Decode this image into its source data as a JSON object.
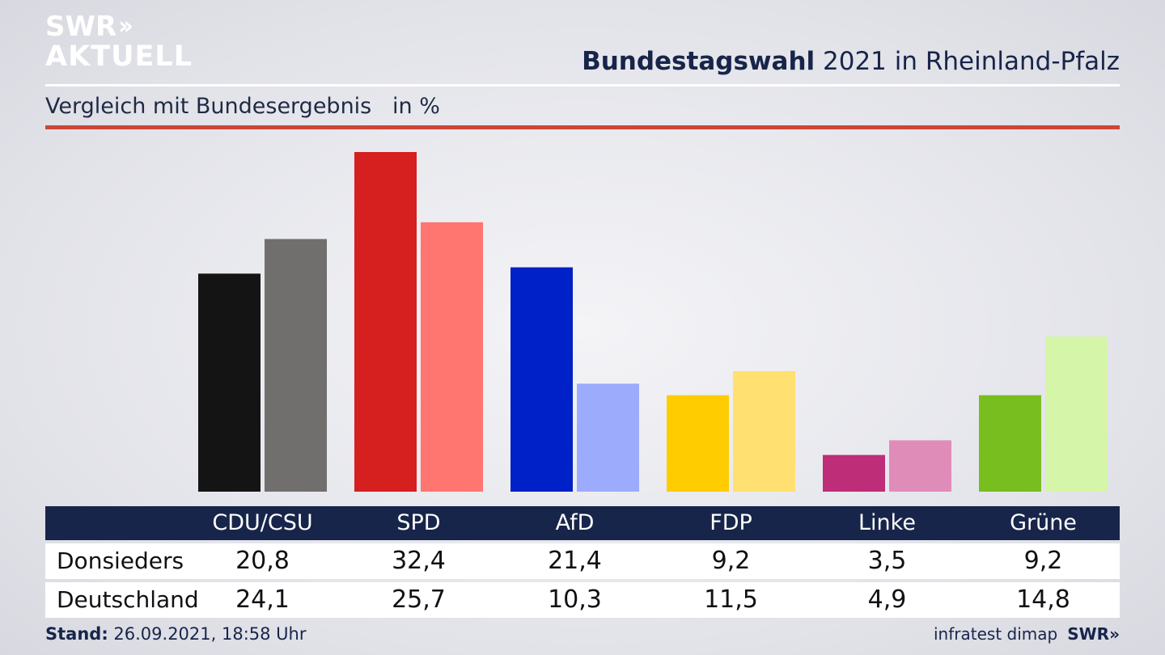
{
  "brand": {
    "logo_line1": "SWR",
    "logo_chevrons": "››",
    "logo_line2": "AKTUELL",
    "footer_logo": "SWR»"
  },
  "header": {
    "title_bold": "Bundestagswahl",
    "title_rest": " 2021 in Rheinland-Pfalz",
    "subtitle": "Vergleich mit Bundesergebnis   in %"
  },
  "colors": {
    "navy": "#18254a",
    "red_rule": "#cc4638"
  },
  "chart_data": {
    "type": "bar",
    "categories": [
      "CDU/CSU",
      "SPD",
      "AfD",
      "FDP",
      "Linke",
      "Grüne"
    ],
    "series": [
      {
        "name": "Donsieders",
        "values": [
          20.8,
          32.4,
          21.4,
          9.2,
          3.5,
          9.2
        ],
        "colors": [
          "#141414",
          "#d61f1f",
          "#0020c8",
          "#ffcc00",
          "#be2d78",
          "#78be1e"
        ]
      },
      {
        "name": "Deutschland",
        "values": [
          24.1,
          25.7,
          10.3,
          11.5,
          4.9,
          14.8
        ],
        "colors": [
          "#706f6d",
          "#ff7570",
          "#9dabfd",
          "#ffe070",
          "#e08cb8",
          "#d5f5a8"
        ]
      }
    ],
    "ylim": [
      0,
      32.4
    ]
  },
  "table": {
    "rows": [
      {
        "label": "Donsieders",
        "values": [
          "20,8",
          "32,4",
          "21,4",
          "9,2",
          "3,5",
          "9,2"
        ]
      },
      {
        "label": "Deutschland",
        "values": [
          "24,1",
          "25,7",
          "10,3",
          "11,5",
          "4,9",
          "14,8"
        ]
      }
    ]
  },
  "footer": {
    "stand_label": "Stand:",
    "stand_value": " 26.09.2021, 18:58 Uhr",
    "source": "infratest dimap"
  }
}
